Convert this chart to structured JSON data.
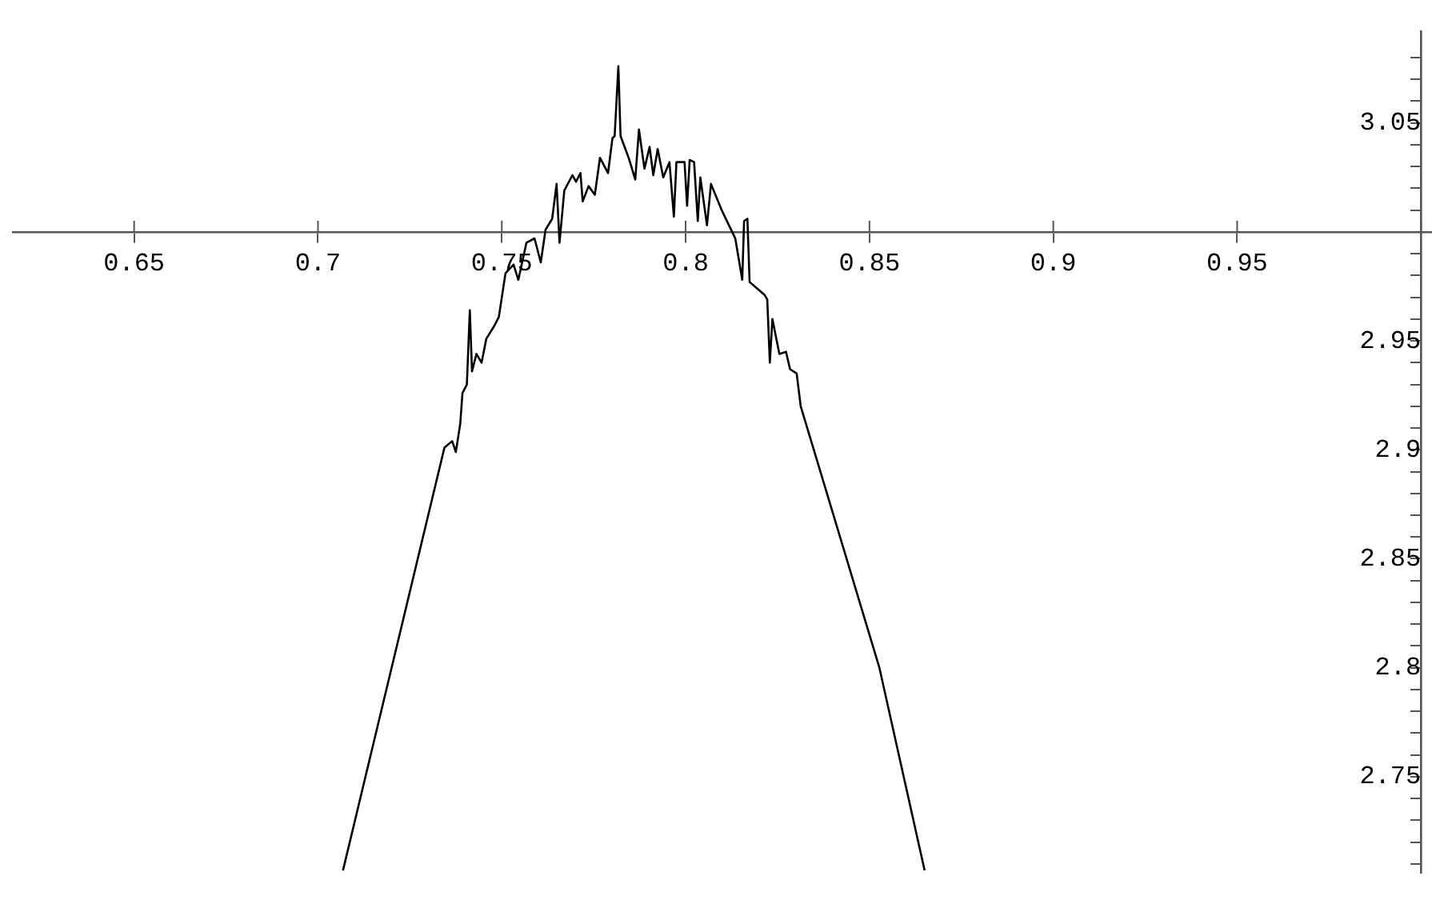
{
  "chart_data": {
    "type": "line",
    "color": "#000000",
    "marker": "none",
    "line_style": "solid",
    "grid": false,
    "legend": false,
    "x": [
      0.7068,
      0.7344,
      0.7365,
      0.7375,
      0.7387,
      0.7393,
      0.7405,
      0.7413,
      0.7419,
      0.7431,
      0.7445,
      0.7458,
      0.748,
      0.7492,
      0.751,
      0.7532,
      0.7545,
      0.7567,
      0.7589,
      0.7606,
      0.7619,
      0.7637,
      0.7649,
      0.7657,
      0.767,
      0.7692,
      0.7702,
      0.7714,
      0.772,
      0.7736,
      0.7753,
      0.7767,
      0.7789,
      0.7801,
      0.7807,
      0.7817,
      0.7823,
      0.7845,
      0.7863,
      0.7873,
      0.7888,
      0.7902,
      0.7912,
      0.7924,
      0.7939,
      0.7956,
      0.7968,
      0.7975,
      0.7997,
      0.8004,
      0.8011,
      0.8023,
      0.8033,
      0.804,
      0.8058,
      0.8069,
      0.8098,
      0.8135,
      0.8154,
      0.8159,
      0.8168,
      0.8174,
      0.8215,
      0.8222,
      0.8229,
      0.8236,
      0.8255,
      0.8273,
      0.8284,
      0.8302,
      0.8313,
      0.8527,
      0.865
    ],
    "values": [
      2.707,
      2.901,
      2.904,
      2.899,
      2.912,
      2.926,
      2.93,
      2.964,
      2.936,
      2.944,
      2.94,
      2.951,
      2.957,
      2.961,
      2.981,
      2.985,
      2.978,
      2.995,
      2.997,
      2.986,
      3.001,
      3.006,
      3.022,
      2.995,
      3.019,
      3.026,
      3.023,
      3.027,
      3.014,
      3.021,
      3.017,
      3.034,
      3.027,
      3.043,
      3.044,
      3.076,
      3.044,
      3.034,
      3.024,
      3.047,
      3.029,
      3.039,
      3.026,
      3.038,
      3.025,
      3.032,
      3.007,
      3.032,
      3.032,
      3.012,
      3.033,
      3.032,
      3.005,
      3.025,
      3.003,
      3.022,
      3.01,
      2.997,
      2.978,
      3.005,
      3.006,
      2.977,
      2.971,
      2.969,
      2.94,
      2.96,
      2.944,
      2.945,
      2.937,
      2.935,
      2.92,
      2.8,
      2.707
    ],
    "xlim": [
      0.617,
      1.003
    ],
    "ylim": [
      2.706,
      3.092
    ],
    "xticks": [
      0.65,
      0.7,
      0.75,
      0.8,
      0.85,
      0.9,
      0.95,
      {
        "value": 1.0,
        "label": null
      }
    ],
    "yticks": [
      {
        "value": 2.71,
        "label": null
      },
      {
        "value": 2.72,
        "label": null
      },
      {
        "value": 2.73,
        "label": null
      },
      {
        "value": 2.74,
        "label": null
      },
      2.75,
      {
        "value": 2.76,
        "label": null
      },
      {
        "value": 2.77,
        "label": null
      },
      {
        "value": 2.78,
        "label": null
      },
      {
        "value": 2.79,
        "label": null
      },
      2.8,
      {
        "value": 2.81,
        "label": null
      },
      {
        "value": 2.82,
        "label": null
      },
      {
        "value": 2.83,
        "label": null
      },
      {
        "value": 2.84,
        "label": null
      },
      2.85,
      {
        "value": 2.86,
        "label": null
      },
      {
        "value": 2.87,
        "label": null
      },
      {
        "value": 2.88,
        "label": null
      },
      {
        "value": 2.89,
        "label": null
      },
      2.9,
      {
        "value": 2.91,
        "label": null
      },
      {
        "value": 2.92,
        "label": null
      },
      {
        "value": 2.93,
        "label": null
      },
      {
        "value": 2.94,
        "label": null
      },
      2.95,
      {
        "value": 2.96,
        "label": null
      },
      {
        "value": 2.97,
        "label": null
      },
      {
        "value": 2.98,
        "label": null
      },
      {
        "value": 2.99,
        "label": null
      },
      {
        "value": 3.0,
        "label": null
      },
      {
        "value": 3.01,
        "label": null
      },
      {
        "value": 3.02,
        "label": null
      },
      {
        "value": 3.03,
        "label": null
      },
      {
        "value": 3.04,
        "label": null
      },
      3.05,
      {
        "value": 3.06,
        "label": null
      },
      {
        "value": 3.07,
        "label": null
      },
      {
        "value": 3.08,
        "label": null
      }
    ]
  }
}
